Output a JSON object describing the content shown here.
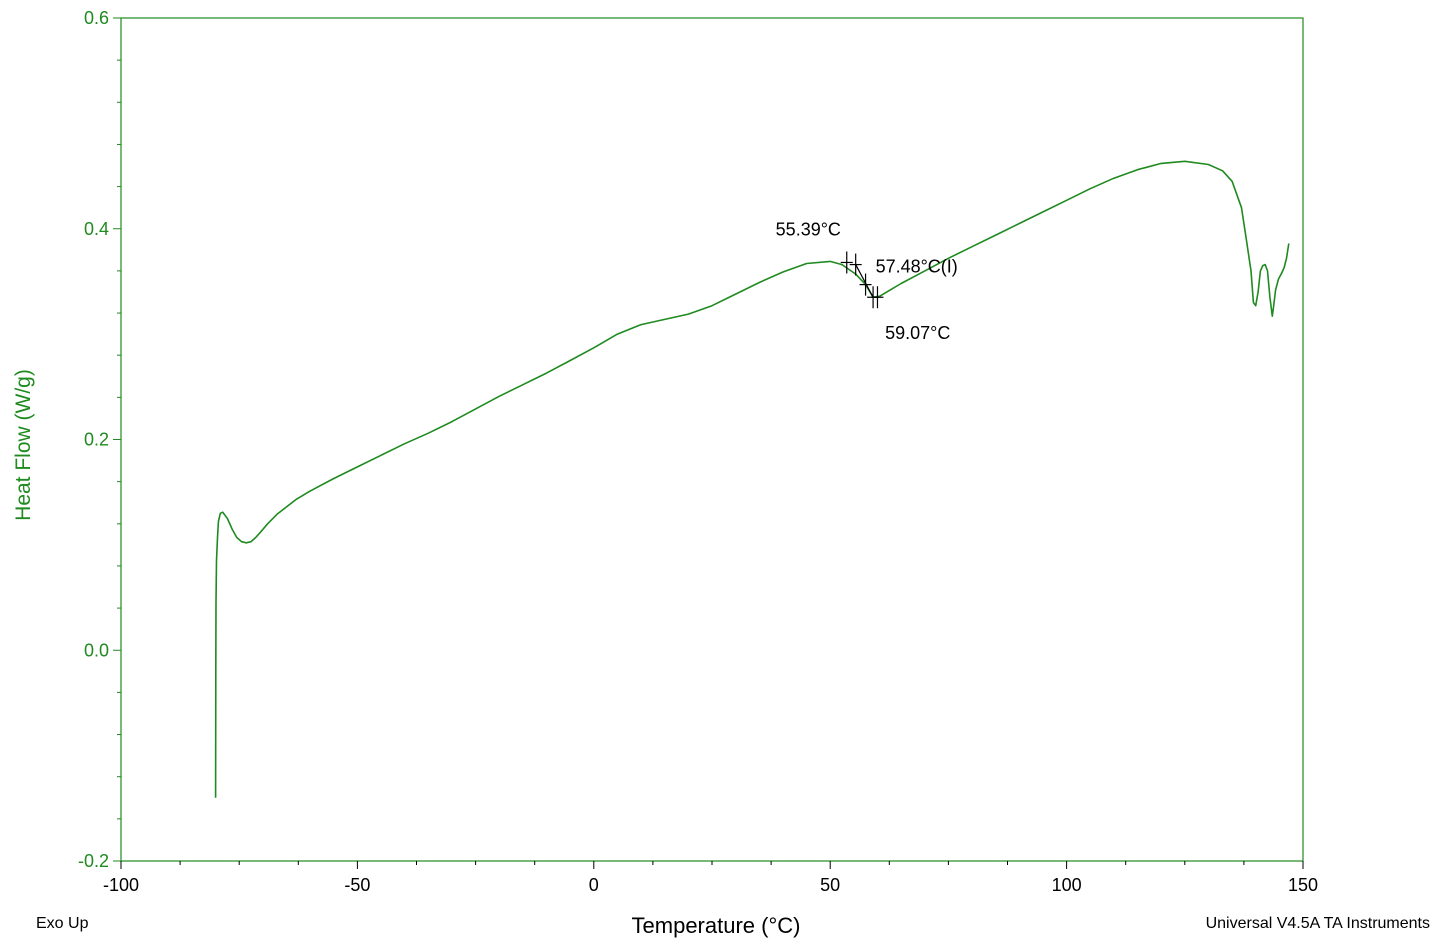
{
  "chart_data": {
    "type": "line",
    "title": "",
    "xlabel": "Temperature (°C)",
    "ylabel": "Heat Flow (W/g)",
    "xlim": [
      -100,
      150
    ],
    "ylim": [
      -0.2,
      0.6
    ],
    "x_ticks": [
      -100,
      -50,
      0,
      50,
      100,
      150
    ],
    "x_tick_labels": [
      "-100",
      "-50",
      "0",
      "50",
      "100",
      "150"
    ],
    "y_ticks": [
      -0.2,
      0.0,
      0.2,
      0.4,
      0.6
    ],
    "y_tick_labels": [
      "-0.2",
      "0.0",
      "0.2",
      "0.4",
      "0.6"
    ],
    "grid": false,
    "series_color": "#1f8a1f",
    "axis_color": "#1f8a1f",
    "series": [
      {
        "x": [
          -80.0,
          -79.95,
          -79.9,
          -79.8,
          -79.6,
          -79.4,
          -79.0,
          -78.5,
          -77.5,
          -76.5,
          -75.5,
          -74.5,
          -73.5,
          -72.5,
          -71.5,
          -70.5,
          -69,
          -67,
          -65,
          -63,
          -60,
          -55,
          -50,
          -45,
          -40,
          -35,
          -30,
          -25,
          -20,
          -15,
          -10,
          -5,
          0,
          5,
          10,
          15,
          20,
          25,
          30,
          35,
          40,
          45,
          50,
          52.5,
          55.39,
          57.48,
          59.07,
          60.5,
          65,
          70,
          75,
          80,
          85,
          90,
          95,
          100,
          105,
          110,
          115,
          120,
          125,
          130,
          133,
          135,
          137,
          138,
          139,
          139.5,
          140,
          140.5,
          141,
          141.5,
          142,
          142.5,
          143,
          143.5,
          143.8,
          144.2,
          144.8,
          145.5,
          146,
          146.5,
          147
        ],
        "y": [
          -0.14,
          -0.02,
          0.045,
          0.085,
          0.107,
          0.122,
          0.13,
          0.131,
          0.125,
          0.115,
          0.107,
          0.103,
          0.102,
          0.103,
          0.107,
          0.112,
          0.12,
          0.129,
          0.136,
          0.143,
          0.151,
          0.163,
          0.174,
          0.185,
          0.196,
          0.206,
          0.217,
          0.229,
          0.241,
          0.252,
          0.263,
          0.275,
          0.287,
          0.3,
          0.309,
          0.314,
          0.319,
          0.327,
          0.338,
          0.349,
          0.359,
          0.367,
          0.369,
          0.366,
          0.357,
          0.347,
          0.335,
          0.336,
          0.348,
          0.36,
          0.372,
          0.383,
          0.394,
          0.405,
          0.416,
          0.427,
          0.438,
          0.448,
          0.456,
          0.462,
          0.464,
          0.461,
          0.455,
          0.445,
          0.42,
          0.39,
          0.36,
          0.33,
          0.327,
          0.34,
          0.36,
          0.365,
          0.366,
          0.36,
          0.335,
          0.317,
          0.327,
          0.342,
          0.352,
          0.358,
          0.363,
          0.372,
          0.386
        ]
      }
    ],
    "annotations": [
      {
        "text": "55.39°C",
        "x": 55.39,
        "y": 0.369
      },
      {
        "text": "57.48°C(I)",
        "x": 57.48,
        "y": 0.347
      },
      {
        "text": "59.07°C",
        "x": 59.07,
        "y": 0.335
      }
    ],
    "markers": [
      {
        "x": 53.5,
        "y": 0.368
      },
      {
        "x": 55.39,
        "y": 0.366
      },
      {
        "x": 57.48,
        "y": 0.347
      },
      {
        "x": 59.07,
        "y": 0.335
      },
      {
        "x": 60.0,
        "y": 0.335
      }
    ]
  },
  "footer": {
    "left": "Exo Up",
    "right": "Universal V4.5A TA Instruments"
  }
}
